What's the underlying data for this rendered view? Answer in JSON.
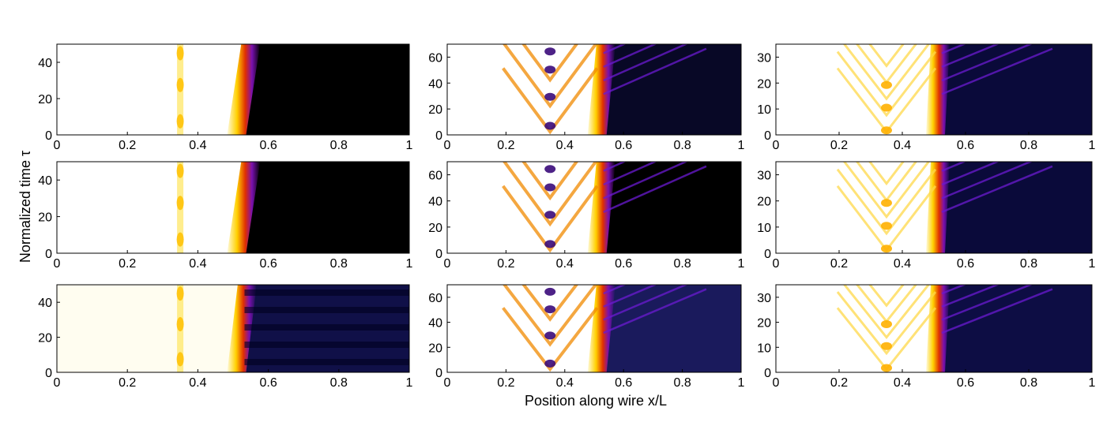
{
  "figure": {
    "ylabel": "Normalized time τ",
    "xlabel": "Position along wire x/L"
  },
  "chart_data": [
    {
      "type": "heatmap",
      "row": 1,
      "col": 1,
      "xlim": [
        0,
        1
      ],
      "ylim": [
        0,
        50
      ],
      "xticks": [
        "0",
        "0.2",
        "0.4",
        "0.6",
        "0.8",
        "1"
      ],
      "yticks": [
        "0",
        "20",
        "40"
      ],
      "yticks_values": [
        0,
        20,
        40
      ],
      "front_x": 0.51,
      "front_tilt": 0.04,
      "peak_x": 0.35,
      "pattern": "solid",
      "cold_color": "#000000",
      "ripple": 0
    },
    {
      "type": "heatmap",
      "row": 1,
      "col": 2,
      "xlim": [
        0,
        1
      ],
      "ylim": [
        0,
        70
      ],
      "xticks": [
        "0",
        "0.2",
        "0.4",
        "0.6",
        "0.8",
        "1"
      ],
      "yticks": [
        "0",
        "20",
        "40",
        "60"
      ],
      "yticks_values": [
        0,
        20,
        40,
        60
      ],
      "front_x": 0.51,
      "front_tilt": 0.03,
      "peak_x": 0.35,
      "pattern": "v",
      "cold_color": "#080826",
      "ripple": 1
    },
    {
      "type": "heatmap",
      "row": 1,
      "col": 3,
      "xlim": [
        0,
        1
      ],
      "ylim": [
        0,
        35
      ],
      "xticks": [
        "0",
        "0.2",
        "0.4",
        "0.6",
        "0.8",
        "1"
      ],
      "yticks": [
        "0",
        "10",
        "20",
        "30"
      ],
      "yticks_values": [
        0,
        10,
        20,
        30
      ],
      "front_x": 0.505,
      "front_tilt": 0.015,
      "peak_x": 0.35,
      "pattern": "lattice",
      "cold_color": "#0a0a3a",
      "ripple": 1
    },
    {
      "type": "heatmap",
      "row": 2,
      "col": 1,
      "xlim": [
        0,
        1
      ],
      "ylim": [
        0,
        50
      ],
      "xticks": [
        "0",
        "0.2",
        "0.4",
        "0.6",
        "0.8",
        "1"
      ],
      "yticks": [
        "0",
        "20",
        "40"
      ],
      "yticks_values": [
        0,
        20,
        40
      ],
      "front_x": 0.51,
      "front_tilt": 0.04,
      "peak_x": 0.35,
      "pattern": "solid",
      "cold_color": "#000000",
      "ripple": 0
    },
    {
      "type": "heatmap",
      "row": 2,
      "col": 2,
      "xlim": [
        0,
        1
      ],
      "ylim": [
        0,
        70
      ],
      "xticks": [
        "0",
        "0.2",
        "0.4",
        "0.6",
        "0.8",
        "1"
      ],
      "yticks": [
        "0",
        "20",
        "40",
        "60"
      ],
      "yticks_values": [
        0,
        20,
        40,
        60
      ],
      "front_x": 0.51,
      "front_tilt": 0.03,
      "peak_x": 0.35,
      "pattern": "v",
      "cold_color": "#000000",
      "ripple": 1
    },
    {
      "type": "heatmap",
      "row": 2,
      "col": 3,
      "xlim": [
        0,
        1
      ],
      "ylim": [
        0,
        35
      ],
      "xticks": [
        "0",
        "0.2",
        "0.4",
        "0.6",
        "0.8",
        "1"
      ],
      "yticks": [
        "0",
        "10",
        "20",
        "30"
      ],
      "yticks_values": [
        0,
        10,
        20,
        30
      ],
      "front_x": 0.505,
      "front_tilt": 0.015,
      "peak_x": 0.35,
      "pattern": "lattice",
      "cold_color": "#0a0a3a",
      "ripple": 1
    },
    {
      "type": "heatmap",
      "row": 3,
      "col": 1,
      "xlim": [
        0,
        1
      ],
      "ylim": [
        0,
        50
      ],
      "xticks": [
        "0",
        "0.2",
        "0.4",
        "0.6",
        "0.8",
        "1"
      ],
      "yticks": [
        "0",
        "20",
        "40"
      ],
      "yticks_values": [
        0,
        20,
        40
      ],
      "front_x": 0.51,
      "front_tilt": 0.03,
      "peak_x": 0.35,
      "pattern": "banded",
      "cold_color": "#101048",
      "ripple": 1
    },
    {
      "type": "heatmap",
      "row": 3,
      "col": 2,
      "xlim": [
        0,
        1
      ],
      "ylim": [
        0,
        70
      ],
      "xticks": [
        "0",
        "0.2",
        "0.4",
        "0.6",
        "0.8",
        "1"
      ],
      "yticks": [
        "0",
        "20",
        "40",
        "60"
      ],
      "yticks_values": [
        0,
        20,
        40,
        60
      ],
      "front_x": 0.51,
      "front_tilt": 0.03,
      "peak_x": 0.35,
      "pattern": "v",
      "cold_color": "#1a1a5c",
      "ripple": 2
    },
    {
      "type": "heatmap",
      "row": 3,
      "col": 3,
      "xlim": [
        0,
        1
      ],
      "ylim": [
        0,
        35
      ],
      "xticks": [
        "0",
        "0.2",
        "0.4",
        "0.6",
        "0.8",
        "1"
      ],
      "yticks": [
        "0",
        "10",
        "20",
        "30"
      ],
      "yticks_values": [
        0,
        10,
        20,
        30
      ],
      "front_x": 0.505,
      "front_tilt": 0.015,
      "peak_x": 0.35,
      "pattern": "lattice",
      "cold_color": "#0d0d44",
      "ripple": 2
    }
  ]
}
